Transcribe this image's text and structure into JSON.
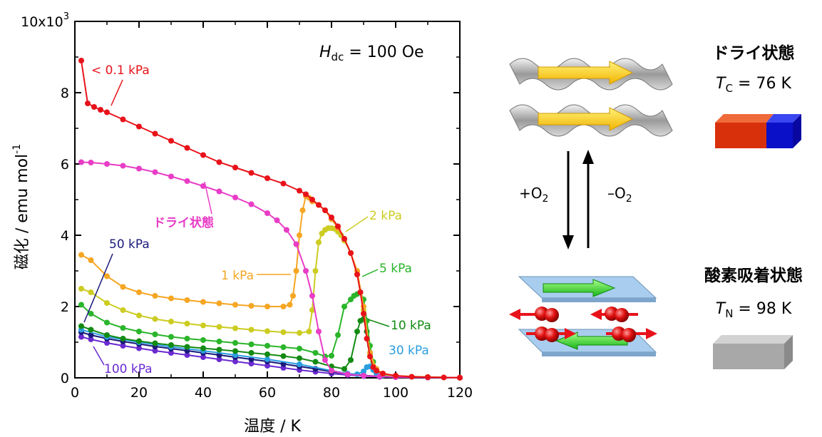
{
  "colors": {
    "red": "#e8121a",
    "magenta": "#e83dc6",
    "orange": "#f5a623",
    "olive": "#cccc22",
    "lime": "#2ab52a",
    "green": "#138a13",
    "blue": "#2a9ee0",
    "navy": "#1a1a7a",
    "purple": "#6a2ad0"
  },
  "chart_data": {
    "type": "line",
    "xlabel": "温度 / K",
    "ylabel": "磁化 / emu mol",
    "ylabel_sup": "-1",
    "xlim": [
      0,
      120
    ],
    "ylim": [
      0,
      10000
    ],
    "xticks": [
      0,
      20,
      40,
      60,
      80,
      100,
      120
    ],
    "yticks": [
      0,
      2000,
      4000,
      6000,
      8000,
      10000
    ],
    "ytick_labels": [
      "0",
      "2",
      "4",
      "6",
      "8",
      "10x10"
    ],
    "ytick_top_sup": "3",
    "grid": false,
    "annotation_field": {
      "symbol": "H",
      "sub": "dc",
      "rest": " = 100 Oe"
    },
    "series": [
      {
        "name": "< 0.1 kPa",
        "color": "red",
        "x": [
          2,
          4,
          6,
          8,
          10,
          15,
          20,
          25,
          30,
          35,
          40,
          45,
          50,
          55,
          60,
          65,
          70,
          72,
          74,
          76,
          78,
          80,
          82,
          84,
          86,
          88,
          89,
          90,
          91,
          92,
          93,
          94,
          96,
          100,
          105,
          110,
          115,
          120
        ],
        "y": [
          8900,
          7700,
          7600,
          7520,
          7450,
          7250,
          7050,
          6850,
          6650,
          6450,
          6250,
          6050,
          5900,
          5750,
          5600,
          5450,
          5250,
          5150,
          5000,
          4850,
          4700,
          4500,
          4250,
          3900,
          3500,
          2900,
          2400,
          1800,
          1100,
          600,
          300,
          200,
          120,
          60,
          30,
          20,
          10,
          5
        ]
      },
      {
        "name": "ドライ状態",
        "color": "magenta",
        "x": [
          2,
          5,
          10,
          15,
          20,
          25,
          30,
          35,
          40,
          45,
          50,
          55,
          60,
          63,
          66,
          69,
          72,
          74,
          76,
          78,
          80,
          85,
          90,
          95,
          100,
          110,
          120
        ],
        "y": [
          6050,
          6040,
          6000,
          5950,
          5870,
          5770,
          5650,
          5520,
          5380,
          5230,
          5060,
          4870,
          4620,
          4420,
          4150,
          3750,
          3000,
          2300,
          1300,
          500,
          200,
          100,
          60,
          40,
          20,
          10,
          5
        ]
      },
      {
        "name": "1 kPa",
        "color": "orange",
        "x": [
          2,
          5,
          10,
          15,
          20,
          25,
          30,
          35,
          40,
          45,
          50,
          55,
          60,
          65,
          67,
          68,
          69,
          70,
          71,
          72,
          73,
          74,
          76,
          78,
          80,
          82,
          84,
          86,
          88,
          90,
          92,
          94,
          96,
          100,
          110,
          120
        ],
        "y": [
          3450,
          3300,
          2850,
          2550,
          2400,
          2300,
          2230,
          2180,
          2130,
          2090,
          2050,
          2020,
          2000,
          2000,
          2050,
          2300,
          3000,
          4000,
          4700,
          5100,
          5050,
          4950,
          4850,
          4700,
          4450,
          4200,
          3900,
          3500,
          3000,
          2000,
          700,
          250,
          120,
          60,
          20,
          5
        ]
      },
      {
        "name": "2 kPa",
        "color": "olive",
        "x": [
          2,
          5,
          10,
          15,
          20,
          25,
          30,
          35,
          40,
          45,
          50,
          55,
          60,
          65,
          70,
          73,
          74,
          75,
          76,
          77,
          78,
          79,
          80,
          81,
          82,
          83,
          84,
          86,
          88,
          90,
          92,
          94,
          96,
          100,
          110,
          120
        ],
        "y": [
          2500,
          2400,
          2100,
          1900,
          1750,
          1650,
          1580,
          1520,
          1470,
          1430,
          1390,
          1350,
          1310,
          1280,
          1260,
          1300,
          1900,
          3000,
          3800,
          4050,
          4150,
          4200,
          4200,
          4180,
          4100,
          4000,
          3850,
          3500,
          2900,
          1900,
          600,
          200,
          100,
          50,
          20,
          5
        ]
      },
      {
        "name": "5 kPa",
        "color": "lime",
        "x": [
          2,
          5,
          10,
          15,
          20,
          25,
          30,
          35,
          40,
          45,
          50,
          55,
          60,
          65,
          70,
          75,
          78,
          80,
          82,
          84,
          86,
          87,
          88,
          89,
          90,
          91,
          92,
          93,
          94,
          96,
          100,
          110,
          120
        ],
        "y": [
          2050,
          1800,
          1550,
          1400,
          1300,
          1220,
          1150,
          1100,
          1060,
          1020,
          980,
          940,
          900,
          860,
          820,
          700,
          600,
          620,
          1200,
          2000,
          2200,
          2300,
          2350,
          2400,
          2200,
          1600,
          900,
          450,
          250,
          100,
          50,
          20,
          5
        ]
      },
      {
        "name": "10 kPa",
        "color": "green",
        "x": [
          2,
          5,
          10,
          15,
          20,
          25,
          30,
          35,
          40,
          45,
          50,
          55,
          60,
          65,
          70,
          75,
          80,
          84,
          86,
          88,
          89,
          90,
          91,
          92,
          94,
          96,
          100,
          110,
          120
        ],
        "y": [
          1450,
          1350,
          1200,
          1100,
          1030,
          970,
          920,
          870,
          830,
          790,
          750,
          700,
          660,
          610,
          550,
          450,
          320,
          250,
          500,
          1300,
          1600,
          1650,
          1300,
          700,
          250,
          100,
          50,
          20,
          5
        ]
      },
      {
        "name": "30 kPa",
        "color": "blue",
        "x": [
          2,
          10,
          20,
          30,
          40,
          50,
          60,
          70,
          80,
          85,
          88,
          90,
          91,
          92,
          93,
          94,
          96,
          100,
          110,
          120
        ],
        "y": [
          1350,
          1150,
          1000,
          870,
          760,
          640,
          520,
          380,
          200,
          120,
          100,
          180,
          300,
          320,
          220,
          120,
          70,
          40,
          15,
          5
        ]
      },
      {
        "name": "50 kPa",
        "color": "navy",
        "x": [
          2,
          5,
          10,
          15,
          20,
          25,
          30,
          35,
          40,
          45,
          50,
          55,
          60,
          65,
          70,
          75,
          80,
          85,
          90,
          95,
          100,
          110,
          120
        ],
        "y": [
          1280,
          1200,
          1100,
          1020,
          950,
          880,
          820,
          760,
          700,
          640,
          580,
          520,
          460,
          390,
          320,
          250,
          170,
          110,
          70,
          40,
          25,
          10,
          5
        ]
      },
      {
        "name": "100 kPa",
        "color": "purple",
        "x": [
          2,
          5,
          10,
          15,
          20,
          25,
          30,
          35,
          40,
          45,
          50,
          55,
          60,
          65,
          70,
          75,
          80,
          85,
          90,
          95,
          100,
          110,
          120
        ],
        "y": [
          1150,
          1080,
          980,
          900,
          830,
          760,
          700,
          640,
          580,
          520,
          460,
          400,
          340,
          280,
          220,
          170,
          120,
          80,
          50,
          30,
          20,
          10,
          5
        ]
      }
    ],
    "labels": [
      {
        "text": "< 0.1 kPa",
        "color": "red"
      },
      {
        "text": "ドライ状態",
        "color": "magenta"
      },
      {
        "text": "1 kPa",
        "color": "orange"
      },
      {
        "text": "2 kPa",
        "color": "olive"
      },
      {
        "text": "5 kPa",
        "color": "lime"
      },
      {
        "text": "10 kPa",
        "color": "green"
      },
      {
        "text": "30 kPa",
        "color": "blue"
      },
      {
        "text": "50 kPa",
        "color": "navy"
      },
      {
        "text": "100 kPa",
        "color": "purple"
      }
    ]
  },
  "schematic": {
    "arrow_add_label": "+O",
    "arrow_add_sub": "2",
    "arrow_remove_label": "–O",
    "arrow_remove_sub": "2",
    "dry_state": {
      "title": "ドライ状態",
      "symbol": "T",
      "sub": "C",
      "rest": " = 76 K"
    },
    "oxygen_state": {
      "title": "酸素吸着状態",
      "symbol": "T",
      "sub": "N",
      "rest": " = 98 K"
    }
  }
}
